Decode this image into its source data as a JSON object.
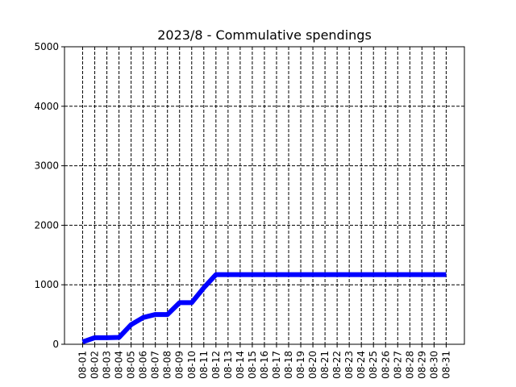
{
  "chart_data": {
    "type": "line",
    "title": "2023/8 - Commulative spendings",
    "xlabel": "",
    "ylabel": "",
    "x": [
      "08-01",
      "08-02",
      "08-03",
      "08-04",
      "08-05",
      "08-06",
      "08-07",
      "08-08",
      "08-09",
      "08-10",
      "08-11",
      "08-12",
      "08-13",
      "08-14",
      "08-15",
      "08-16",
      "08-17",
      "08-18",
      "08-19",
      "08-20",
      "08-21",
      "08-22",
      "08-23",
      "08-24",
      "08-25",
      "08-26",
      "08-27",
      "08-28",
      "08-29",
      "08-30",
      "08-31"
    ],
    "series": [
      {
        "name": "",
        "color": "#0000ff",
        "values": [
          40,
          110,
          110,
          115,
          330,
          450,
          500,
          500,
          700,
          700,
          950,
          1170,
          1170,
          1170,
          1170,
          1170,
          1170,
          1170,
          1170,
          1170,
          1170,
          1170,
          1170,
          1170,
          1170,
          1170,
          1170,
          1170,
          1170,
          1170,
          1170
        ]
      }
    ],
    "ylim": [
      0,
      5000
    ],
    "yticks": [
      "0",
      "1000",
      "2000",
      "3000",
      "4000",
      "5000"
    ],
    "grid": true,
    "grid_style": "dashed"
  }
}
